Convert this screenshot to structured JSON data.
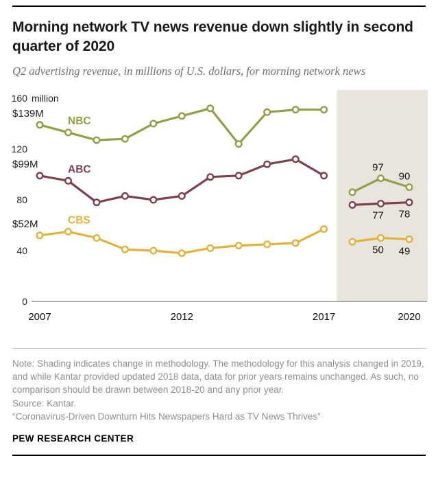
{
  "header": {
    "title": "Morning network TV news revenue down slightly in second quarter of 2020",
    "subtitle": "Q2 advertising revenue, in millions of U.S. dollars, for morning network news"
  },
  "chart_data": {
    "type": "line",
    "x": [
      2007,
      2008,
      2009,
      2010,
      2011,
      2012,
      2013,
      2014,
      2015,
      2016,
      2017,
      2018,
      2019,
      2020
    ],
    "series": [
      {
        "name": "NBC",
        "color": "#949d48",
        "start_label": "$139M",
        "values": [
          139,
          133,
          127,
          128,
          140,
          146,
          152,
          124,
          149,
          151,
          151,
          86,
          97,
          90
        ],
        "value_labels": [
          {
            "x": 2019,
            "text": "97",
            "position": "above"
          },
          {
            "x": 2020,
            "text": "90",
            "position": "above"
          }
        ]
      },
      {
        "name": "ABC",
        "color": "#7a414f",
        "start_label": "$99M",
        "values": [
          99,
          95,
          78,
          83,
          80,
          83,
          98,
          99,
          108,
          112,
          99,
          76,
          77,
          78
        ],
        "value_labels": [
          {
            "x": 2019,
            "text": "77",
            "position": "below"
          },
          {
            "x": 2020,
            "text": "78",
            "position": "below"
          }
        ]
      },
      {
        "name": "CBS",
        "color": "#e3b23d",
        "start_label": "$52M",
        "values": [
          52,
          55,
          50,
          41,
          40,
          38,
          42,
          44,
          45,
          46,
          57,
          47,
          50,
          49
        ],
        "value_labels": [
          {
            "x": 2019,
            "text": "50",
            "position": "below"
          },
          {
            "x": 2020,
            "text": "49",
            "position": "below"
          }
        ]
      }
    ],
    "xlim": [
      2007,
      2020
    ],
    "ylim": [
      0,
      160
    ],
    "yticks": [
      0,
      40,
      80,
      120,
      160
    ],
    "unit_label": "million",
    "xticks": [
      2007,
      2012,
      2017,
      2020
    ],
    "xtick_labels": [
      "2007",
      "2012",
      "2017",
      "2020"
    ],
    "grid": false,
    "legend": "inline-labels",
    "break_after_year": 2017,
    "shaded_region": {
      "from": 2017.45,
      "to": 2020.75,
      "color": "#e9e5dc"
    }
  },
  "notes": {
    "note": "Note: Shading indicates change in methodology. The methodology for this analysis changed in 2019, and while Kantar provided updated 2018 data, data for prior years remains unchanged. As such, no comparison should be drawn between 2018-20 and any prior year.",
    "source": "Source: Kantar.",
    "quote": "“Coronavirus-Driven Downturn Hits Newspapers Hard as TV News Thrives”"
  },
  "footer": {
    "brand": "PEW RESEARCH CENTER"
  }
}
